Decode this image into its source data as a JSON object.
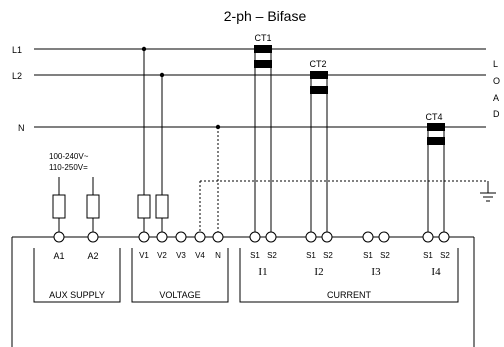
{
  "title": "2-ph – Bifase",
  "lines": {
    "l1": "L1",
    "l2": "L2",
    "n": "N"
  },
  "load_letters": [
    "L",
    "O",
    "A",
    "D"
  ],
  "ct_labels": {
    "ct1": "CT1",
    "ct2": "CT2",
    "ct4": "CT4"
  },
  "aux_supply_ranges": [
    "100-240V~",
    "110-250V="
  ],
  "terminals": {
    "aux": [
      "A1",
      "A2"
    ],
    "voltage": [
      "V1",
      "V2",
      "V3",
      "V4",
      "N"
    ],
    "current_pairs": [
      [
        "S1",
        "S2"
      ],
      [
        "S1",
        "S2"
      ],
      [
        "S1",
        "S2"
      ],
      [
        "S1",
        "S2"
      ]
    ],
    "current_channels": [
      "I1",
      "I2",
      "I3",
      "I4"
    ]
  },
  "groups": {
    "aux_supply": "AUX SUPPLY",
    "voltage": "VOLTAGE",
    "current": "CURRENT"
  }
}
